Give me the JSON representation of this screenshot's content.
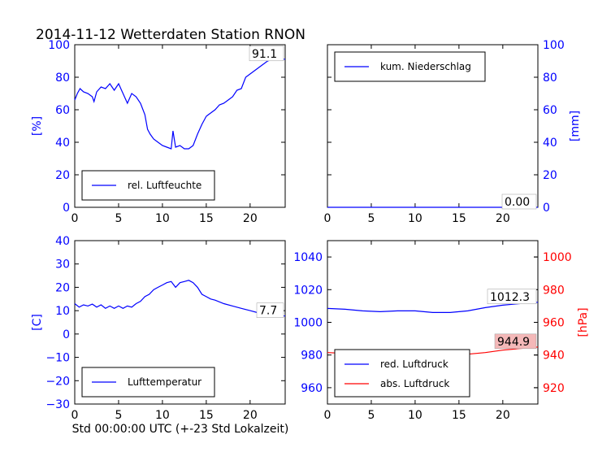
{
  "title": "2014-11-12 Wetterdaten Station RNON",
  "xlabel": "Std 00:00:00 UTC (+-23 Std Lokalzeit)",
  "colors": {
    "blue": "#0000ff",
    "red": "#ff0000",
    "axis": "#000000",
    "annot_red_bg": "#f4b8b8"
  },
  "chart_data": [
    {
      "id": "humidity",
      "type": "line",
      "ylabel": "[%]",
      "xlim": [
        0,
        24
      ],
      "ylim": [
        0,
        100
      ],
      "xticks": [
        "0",
        "5",
        "10",
        "15",
        "20"
      ],
      "yticks": [
        "0",
        "20",
        "40",
        "60",
        "80",
        "100"
      ],
      "legend": {
        "position": "lower-left",
        "entries": [
          "rel. Luftfeuchte"
        ]
      },
      "annotation": "91.1",
      "series": [
        {
          "name": "rel. Luftfeuchte",
          "color": "#0000ff",
          "x": [
            0,
            0.3,
            0.6,
            1,
            1.5,
            2,
            2.2,
            2.5,
            3,
            3.5,
            4,
            4.5,
            5,
            5.5,
            6,
            6.5,
            7,
            7.5,
            8,
            8.3,
            8.6,
            9,
            9.5,
            10,
            10.5,
            11,
            11.2,
            11.5,
            12,
            12.5,
            13,
            13.5,
            14,
            14.5,
            15,
            15.5,
            16,
            16.5,
            17,
            17.5,
            18,
            18.5,
            19,
            19.5,
            20,
            20.5,
            21,
            21.5,
            22,
            22.5,
            23,
            23.5,
            24
          ],
          "y": [
            66,
            70,
            73,
            71,
            70,
            68,
            65,
            71,
            74,
            73,
            76,
            72,
            76,
            70,
            64,
            70,
            68,
            64,
            57,
            48,
            45,
            42,
            40,
            38,
            37,
            36,
            47,
            37,
            38,
            36,
            36,
            38,
            45,
            51,
            56,
            58,
            60,
            63,
            64,
            66,
            68,
            72,
            73,
            80,
            82,
            84,
            86,
            88,
            90,
            91,
            91.1,
            91.1,
            91.1
          ]
        }
      ]
    },
    {
      "id": "precipitation",
      "type": "line",
      "ylabel": "[mm]",
      "xlim": [
        0,
        24
      ],
      "ylim": [
        0,
        100
      ],
      "xticks": [
        "0",
        "5",
        "10",
        "15",
        "20"
      ],
      "yticks": [
        "0",
        "20",
        "40",
        "60",
        "80",
        "100"
      ],
      "legend": {
        "position": "upper-left",
        "entries": [
          "kum. Niederschlag"
        ]
      },
      "annotation": "0.00",
      "series": [
        {
          "name": "kum. Niederschlag",
          "color": "#0000ff",
          "x": [
            0,
            24
          ],
          "y": [
            0,
            0
          ]
        }
      ]
    },
    {
      "id": "temperature",
      "type": "line",
      "ylabel": "[C]",
      "xlim": [
        0,
        24
      ],
      "ylim": [
        -30,
        40
      ],
      "xticks": [
        "0",
        "5",
        "10",
        "15",
        "20"
      ],
      "yticks": [
        "−30",
        "−20",
        "−10",
        "0",
        "10",
        "20",
        "30",
        "40"
      ],
      "legend": {
        "position": "lower-left",
        "entries": [
          "Lufttemperatur"
        ]
      },
      "annotation": "7.7",
      "series": [
        {
          "name": "Lufttemperatur",
          "color": "#0000ff",
          "x": [
            0,
            0.5,
            1,
            1.5,
            2,
            2.5,
            3,
            3.5,
            4,
            4.5,
            5,
            5.5,
            6,
            6.5,
            7,
            7.5,
            8,
            8.5,
            9,
            9.5,
            10,
            10.5,
            11,
            11.5,
            12,
            12.5,
            13,
            13.5,
            14,
            14.5,
            15,
            15.5,
            16,
            17,
            18,
            19,
            20,
            21,
            22,
            23,
            24
          ],
          "y": [
            13,
            11.5,
            12.5,
            12,
            12.8,
            11.5,
            12.5,
            11,
            12,
            11,
            12,
            11,
            12,
            11.5,
            13,
            14,
            16,
            17,
            19,
            20,
            21,
            22,
            22.5,
            20,
            22,
            22.5,
            23,
            22,
            20,
            17,
            16,
            15,
            14.5,
            13,
            12,
            11,
            10,
            9,
            8,
            7.7,
            7.7
          ]
        }
      ]
    },
    {
      "id": "pressure",
      "type": "line",
      "ylabel": "[hPa]",
      "xlim": [
        0,
        24
      ],
      "ylim": [
        950,
        1050
      ],
      "ylim_right": [
        910,
        1010
      ],
      "xticks": [
        "0",
        "5",
        "10",
        "15",
        "20"
      ],
      "yticks": [
        "960",
        "980",
        "1000",
        "1020",
        "1040"
      ],
      "yticks_right": [
        "920",
        "940",
        "960",
        "980",
        "1000"
      ],
      "legend": {
        "position": "lower-left",
        "entries": [
          "red. Luftdruck",
          "abs. Luftdruck"
        ]
      },
      "annotations": [
        "1012.3",
        "944.9"
      ],
      "series": [
        {
          "name": "red. Luftdruck",
          "color": "#0000ff",
          "axis": "left",
          "x": [
            0,
            2,
            4,
            6,
            8,
            10,
            12,
            14,
            16,
            18,
            20,
            22,
            24
          ],
          "y": [
            1008.5,
            1008,
            1007,
            1006.5,
            1007,
            1007,
            1006,
            1006,
            1007,
            1009,
            1010.5,
            1011.5,
            1012.3
          ]
        },
        {
          "name": "abs. Luftdruck",
          "color": "#ff0000",
          "axis": "right",
          "x": [
            0,
            2,
            4,
            6,
            8,
            10,
            12,
            14,
            16,
            18,
            20,
            22,
            24
          ],
          "y": [
            941.5,
            941,
            940.5,
            940,
            940.5,
            941.5,
            941,
            940.5,
            940.5,
            941.5,
            943,
            944,
            944.9
          ]
        }
      ]
    }
  ]
}
